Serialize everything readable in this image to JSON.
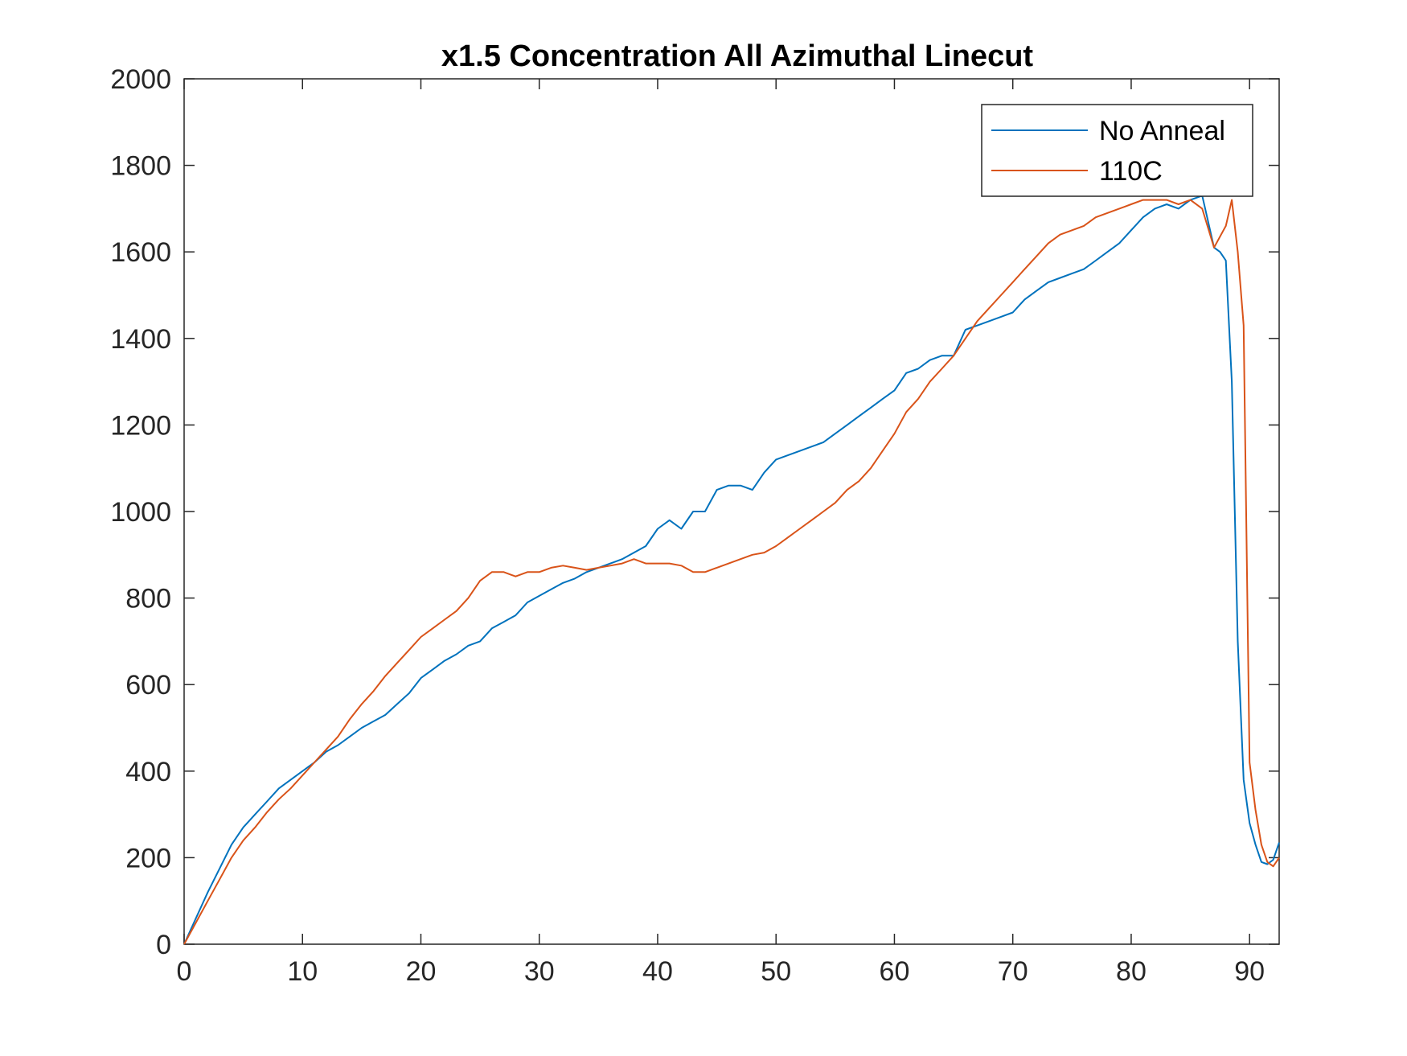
{
  "chart_data": {
    "type": "line",
    "title": "x1.5 Concentration All Azimuthal Linecut",
    "xlabel": "",
    "ylabel": "",
    "xlim": [
      0,
      92.5
    ],
    "ylim": [
      0,
      2000
    ],
    "xticks": [
      0,
      10,
      20,
      30,
      40,
      50,
      60,
      70,
      80,
      90
    ],
    "yticks": [
      0,
      200,
      400,
      600,
      800,
      1000,
      1200,
      1400,
      1600,
      1800,
      2000
    ],
    "xtick_labels": [
      "0",
      "10",
      "20",
      "30",
      "40",
      "50",
      "60",
      "70",
      "80",
      "90"
    ],
    "ytick_labels": [
      "0",
      "200",
      "400",
      "600",
      "800",
      "1000",
      "1200",
      "1400",
      "1600",
      "1800",
      "2000"
    ],
    "grid": false,
    "legend_position": "top-right",
    "series": [
      {
        "name": "No Anneal",
        "color": "#0072BD",
        "points": [
          [
            0,
            0
          ],
          [
            1,
            60
          ],
          [
            2,
            120
          ],
          [
            3,
            175
          ],
          [
            4,
            230
          ],
          [
            5,
            270
          ],
          [
            6,
            300
          ],
          [
            7,
            330
          ],
          [
            8,
            360
          ],
          [
            9,
            380
          ],
          [
            10,
            400
          ],
          [
            11,
            420
          ],
          [
            12,
            445
          ],
          [
            13,
            460
          ],
          [
            14,
            480
          ],
          [
            15,
            500
          ],
          [
            16,
            515
          ],
          [
            17,
            530
          ],
          [
            18,
            555
          ],
          [
            19,
            580
          ],
          [
            20,
            615
          ],
          [
            21,
            635
          ],
          [
            22,
            655
          ],
          [
            23,
            670
          ],
          [
            24,
            690
          ],
          [
            25,
            700
          ],
          [
            26,
            730
          ],
          [
            27,
            745
          ],
          [
            28,
            760
          ],
          [
            29,
            790
          ],
          [
            30,
            805
          ],
          [
            31,
            820
          ],
          [
            32,
            835
          ],
          [
            33,
            845
          ],
          [
            34,
            860
          ],
          [
            35,
            870
          ],
          [
            36,
            880
          ],
          [
            37,
            890
          ],
          [
            38,
            905
          ],
          [
            39,
            920
          ],
          [
            40,
            960
          ],
          [
            41,
            980
          ],
          [
            42,
            960
          ],
          [
            43,
            1000
          ],
          [
            44,
            1000
          ],
          [
            45,
            1050
          ],
          [
            46,
            1060
          ],
          [
            47,
            1060
          ],
          [
            48,
            1050
          ],
          [
            49,
            1090
          ],
          [
            50,
            1120
          ],
          [
            51,
            1130
          ],
          [
            52,
            1140
          ],
          [
            53,
            1150
          ],
          [
            54,
            1160
          ],
          [
            55,
            1180
          ],
          [
            56,
            1200
          ],
          [
            57,
            1220
          ],
          [
            58,
            1240
          ],
          [
            59,
            1260
          ],
          [
            60,
            1280
          ],
          [
            61,
            1320
          ],
          [
            62,
            1330
          ],
          [
            63,
            1350
          ],
          [
            64,
            1360
          ],
          [
            65,
            1360
          ],
          [
            66,
            1420
          ],
          [
            67,
            1430
          ],
          [
            68,
            1440
          ],
          [
            69,
            1450
          ],
          [
            70,
            1460
          ],
          [
            71,
            1490
          ],
          [
            72,
            1510
          ],
          [
            73,
            1530
          ],
          [
            74,
            1540
          ],
          [
            75,
            1550
          ],
          [
            76,
            1560
          ],
          [
            77,
            1580
          ],
          [
            78,
            1600
          ],
          [
            79,
            1620
          ],
          [
            80,
            1650
          ],
          [
            81,
            1680
          ],
          [
            82,
            1700
          ],
          [
            83,
            1710
          ],
          [
            84,
            1700
          ],
          [
            85,
            1720
          ],
          [
            86,
            1730
          ],
          [
            87,
            1610
          ],
          [
            87.5,
            1600
          ],
          [
            88,
            1580
          ],
          [
            88.5,
            1300
          ],
          [
            89,
            700
          ],
          [
            89.5,
            380
          ],
          [
            90,
            280
          ],
          [
            90.5,
            230
          ],
          [
            91,
            190
          ],
          [
            91.5,
            185
          ],
          [
            92,
            195
          ],
          [
            92.5,
            235
          ]
        ]
      },
      {
        "name": "110C",
        "color": "#D95319",
        "points": [
          [
            0,
            0
          ],
          [
            1,
            50
          ],
          [
            2,
            100
          ],
          [
            3,
            150
          ],
          [
            4,
            200
          ],
          [
            5,
            240
          ],
          [
            6,
            270
          ],
          [
            7,
            305
          ],
          [
            8,
            335
          ],
          [
            9,
            360
          ],
          [
            10,
            390
          ],
          [
            11,
            420
          ],
          [
            12,
            450
          ],
          [
            13,
            480
          ],
          [
            14,
            520
          ],
          [
            15,
            555
          ],
          [
            16,
            585
          ],
          [
            17,
            620
          ],
          [
            18,
            650
          ],
          [
            19,
            680
          ],
          [
            20,
            710
          ],
          [
            21,
            730
          ],
          [
            22,
            750
          ],
          [
            23,
            770
          ],
          [
            24,
            800
          ],
          [
            25,
            840
          ],
          [
            26,
            860
          ],
          [
            27,
            860
          ],
          [
            28,
            850
          ],
          [
            29,
            860
          ],
          [
            30,
            860
          ],
          [
            31,
            870
          ],
          [
            32,
            875
          ],
          [
            33,
            870
          ],
          [
            34,
            865
          ],
          [
            35,
            870
          ],
          [
            36,
            875
          ],
          [
            37,
            880
          ],
          [
            38,
            890
          ],
          [
            39,
            880
          ],
          [
            40,
            880
          ],
          [
            41,
            880
          ],
          [
            42,
            875
          ],
          [
            43,
            860
          ],
          [
            44,
            860
          ],
          [
            45,
            870
          ],
          [
            46,
            880
          ],
          [
            47,
            890
          ],
          [
            48,
            900
          ],
          [
            49,
            905
          ],
          [
            50,
            920
          ],
          [
            51,
            940
          ],
          [
            52,
            960
          ],
          [
            53,
            980
          ],
          [
            54,
            1000
          ],
          [
            55,
            1020
          ],
          [
            56,
            1050
          ],
          [
            57,
            1070
          ],
          [
            58,
            1100
          ],
          [
            59,
            1140
          ],
          [
            60,
            1180
          ],
          [
            61,
            1230
          ],
          [
            62,
            1260
          ],
          [
            63,
            1300
          ],
          [
            64,
            1330
          ],
          [
            65,
            1360
          ],
          [
            66,
            1400
          ],
          [
            67,
            1440
          ],
          [
            68,
            1470
          ],
          [
            69,
            1500
          ],
          [
            70,
            1530
          ],
          [
            71,
            1560
          ],
          [
            72,
            1590
          ],
          [
            73,
            1620
          ],
          [
            74,
            1640
          ],
          [
            75,
            1650
          ],
          [
            76,
            1660
          ],
          [
            77,
            1680
          ],
          [
            78,
            1690
          ],
          [
            79,
            1700
          ],
          [
            80,
            1710
          ],
          [
            81,
            1720
          ],
          [
            82,
            1720
          ],
          [
            83,
            1720
          ],
          [
            84,
            1710
          ],
          [
            85,
            1720
          ],
          [
            86,
            1700
          ],
          [
            87,
            1610
          ],
          [
            88,
            1660
          ],
          [
            88.5,
            1720
          ],
          [
            89,
            1600
          ],
          [
            89.5,
            1430
          ],
          [
            90,
            420
          ],
          [
            90.5,
            310
          ],
          [
            91,
            230
          ],
          [
            91.5,
            190
          ],
          [
            92,
            180
          ],
          [
            92.5,
            200
          ]
        ]
      }
    ]
  }
}
